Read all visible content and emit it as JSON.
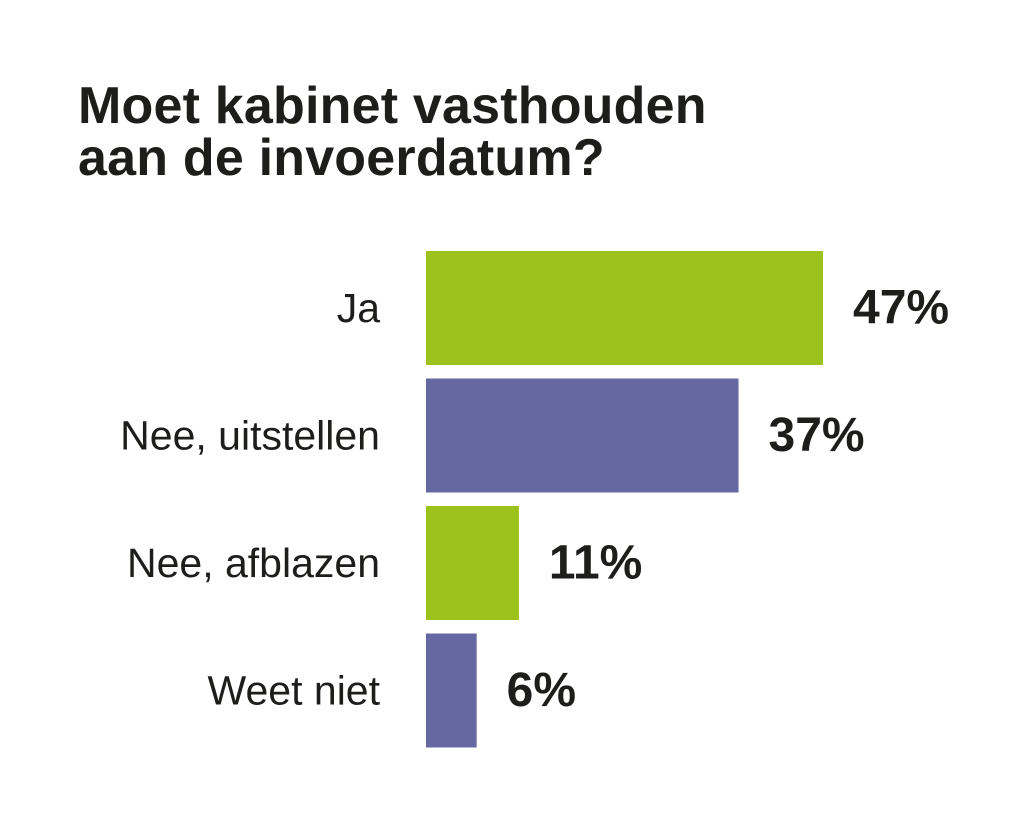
{
  "chart_data": {
    "type": "bar",
    "orientation": "horizontal",
    "title": "Moet kabinet vasthouden aan de invoerdatum?",
    "title_lines": [
      "Moet kabinet vasthouden",
      "aan de invoerdatum?"
    ],
    "categories": [
      "Ja",
      "Nee, uitstellen",
      "Nee, afblazen",
      "Weet niet"
    ],
    "values": [
      47,
      37,
      11,
      6
    ],
    "value_labels": [
      "47%",
      "37%",
      "11%",
      "6%"
    ],
    "unit": "%",
    "xlim": [
      0,
      100
    ],
    "grid": false,
    "legend": "none",
    "bar_colors": [
      "#9dc21e",
      "#6669a1",
      "#9dc21e",
      "#6669a1"
    ]
  }
}
